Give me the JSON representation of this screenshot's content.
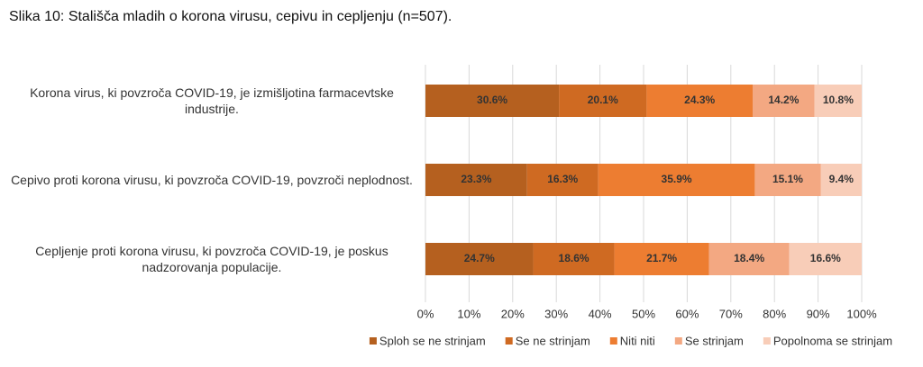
{
  "chart_data": {
    "type": "stacked_barh",
    "title": "Slika 10: Stališča mladih o korona virusu, cepivu in cepljenju (n=507).",
    "categories": [
      "Korona virus, ki povzroča COVID-19, je izmišljotina farmacevtske industrije.",
      "Cepivo proti korona virusu, ki povzroča COVID-19, povzroči neplodnost.",
      "Cepljenje proti korona virusu, ki povzroča COVID-19, je poskus nadzorovanja populacije."
    ],
    "series": [
      {
        "name": "Sploh se ne strinjam",
        "color": "#b5601f",
        "values": [
          30.6,
          23.3,
          24.7
        ],
        "value_labels": [
          "30.6%",
          "23.3%",
          "24.7%"
        ]
      },
      {
        "name": "Se ne strinjam",
        "color": "#cf6a22",
        "values": [
          20.1,
          16.3,
          18.6
        ],
        "value_labels": [
          "20.1%",
          "16.3%",
          "18.6%"
        ]
      },
      {
        "name": "Niti niti",
        "color": "#ed7d31",
        "values": [
          24.3,
          35.9,
          21.7
        ],
        "value_labels": [
          "24.3%",
          "35.9%",
          "21.7%"
        ]
      },
      {
        "name": "Se strinjam",
        "color": "#f3a882",
        "values": [
          14.2,
          15.1,
          18.4
        ],
        "value_labels": [
          "14.2%",
          "15.1%",
          "18.4%"
        ]
      },
      {
        "name": "Popolnoma se strinjam",
        "color": "#f8cdb8",
        "values": [
          10.8,
          9.4,
          16.6
        ],
        "value_labels": [
          "10.8%",
          "9.4%",
          "16.6%"
        ]
      }
    ],
    "xlim": [
      0,
      100
    ],
    "xticks": [
      {
        "value": 0,
        "label": "0%"
      },
      {
        "value": 10,
        "label": "10%"
      },
      {
        "value": 20,
        "label": "20%"
      },
      {
        "value": 30,
        "label": "30%"
      },
      {
        "value": 40,
        "label": "40%"
      },
      {
        "value": 50,
        "label": "50%"
      },
      {
        "value": 60,
        "label": "60%"
      },
      {
        "value": 70,
        "label": "70%"
      },
      {
        "value": 80,
        "label": "80%"
      },
      {
        "value": 90,
        "label": "90%"
      },
      {
        "value": 100,
        "label": "100%"
      }
    ],
    "grid": true,
    "legend": "bottom"
  }
}
